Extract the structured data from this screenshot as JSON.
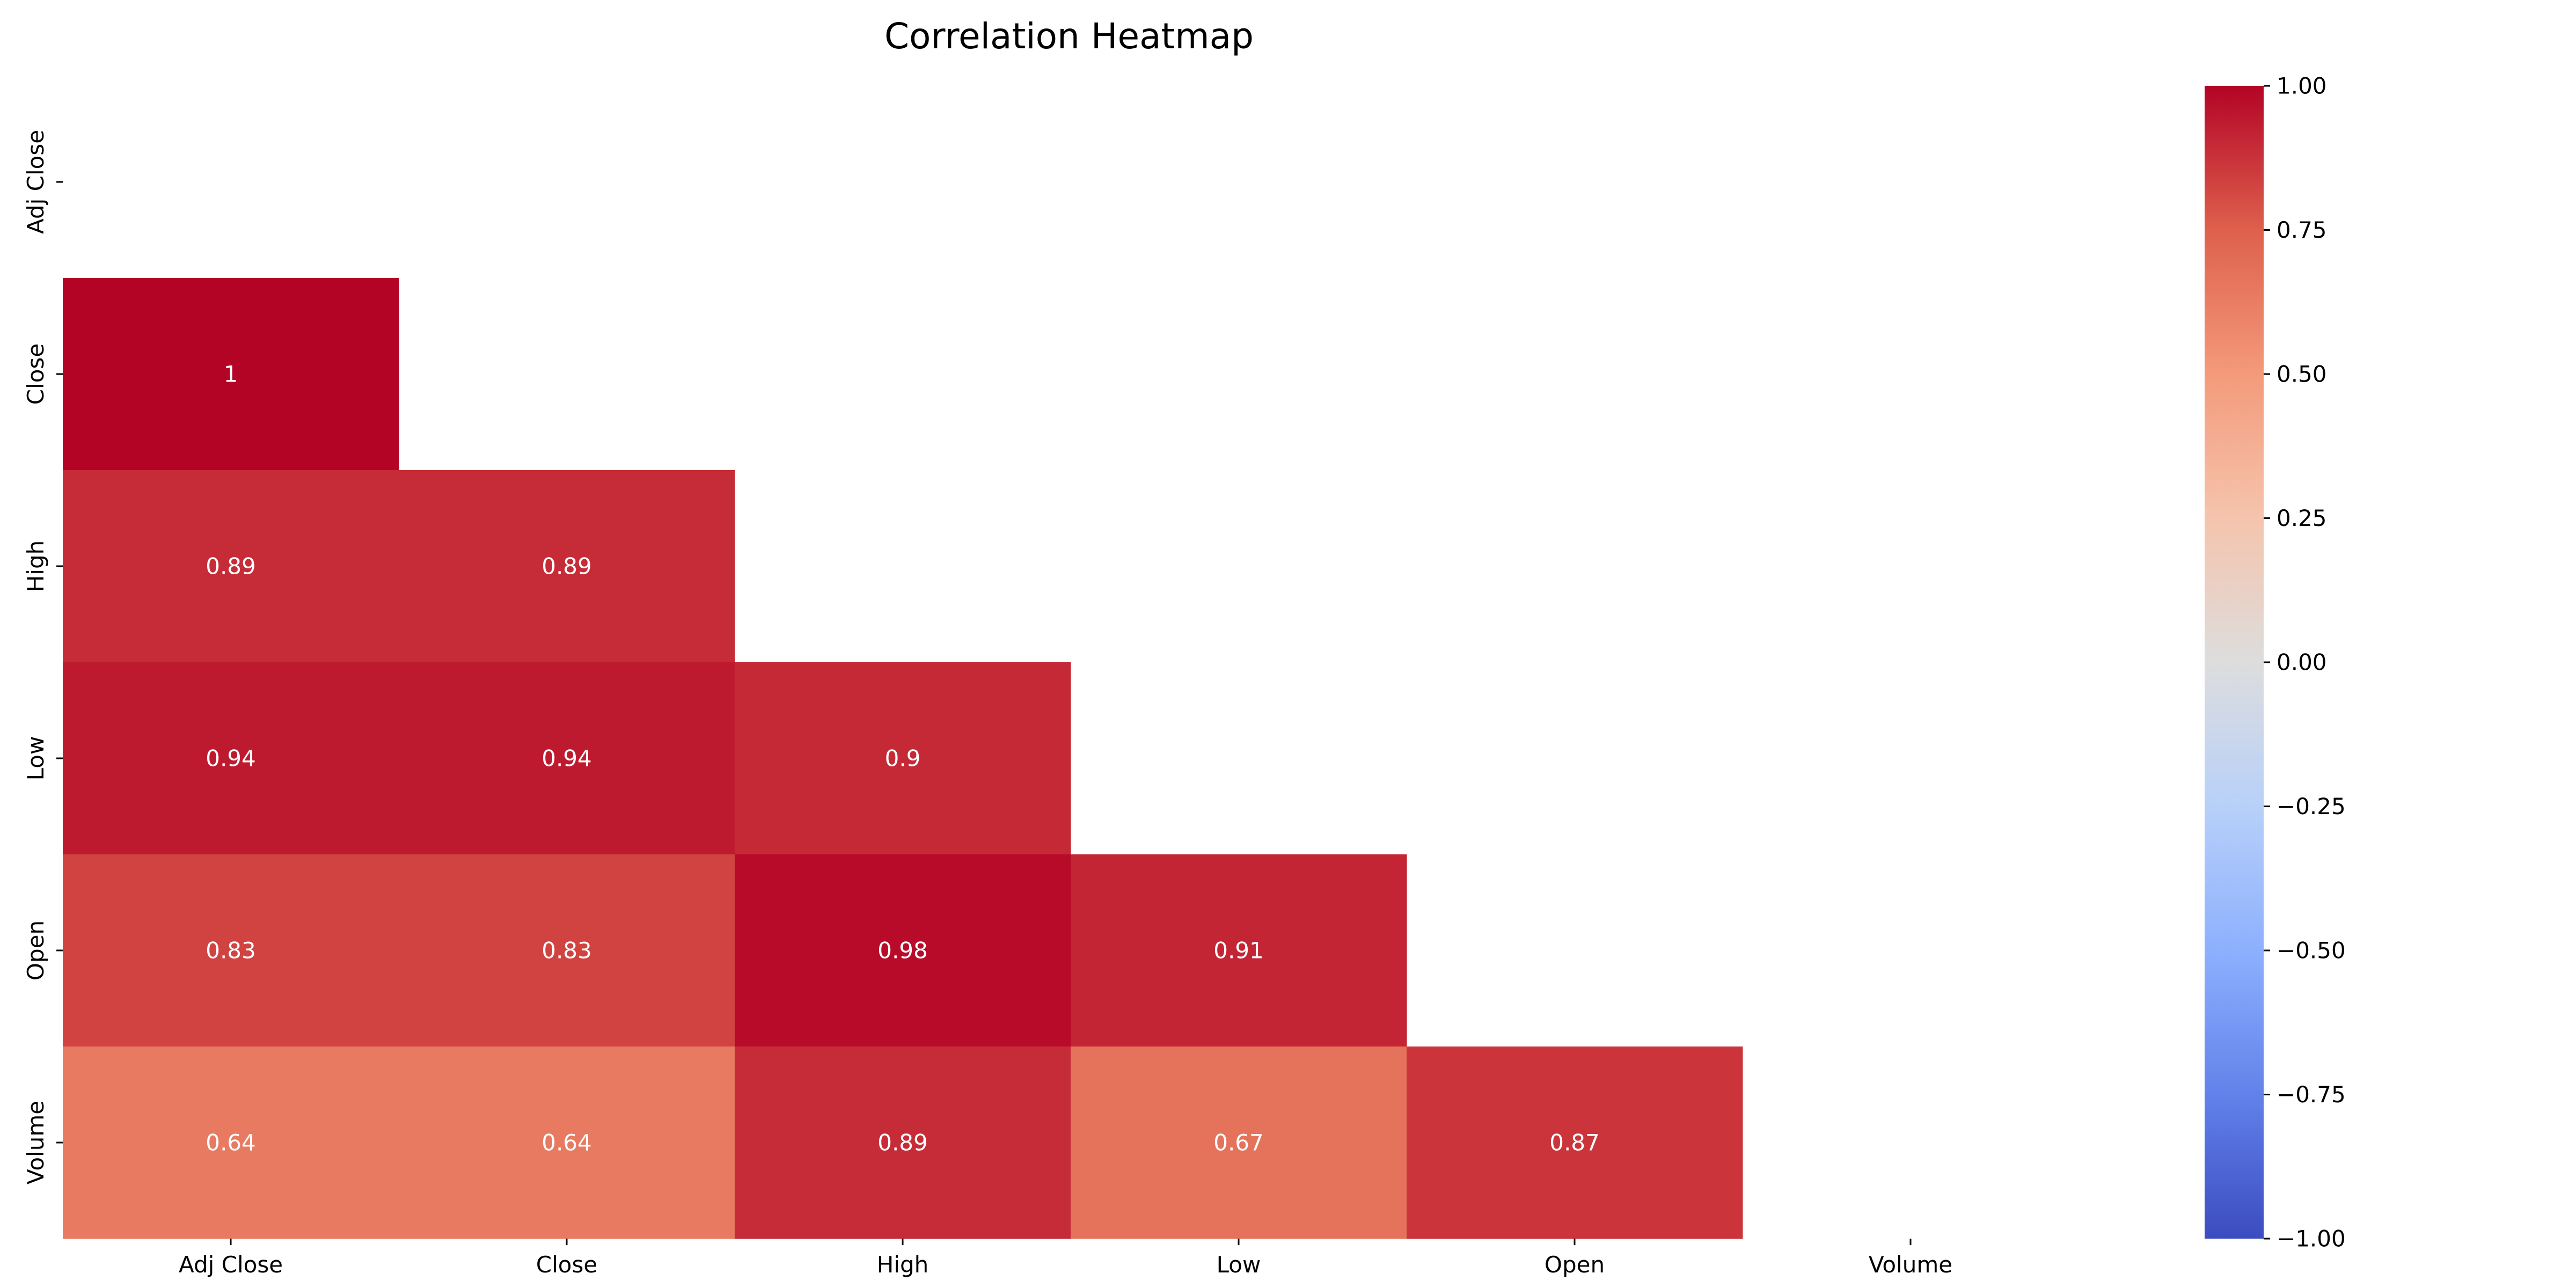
{
  "chart_data": {
    "type": "heatmap",
    "title": "Correlation Heatmap",
    "xlabel": "",
    "ylabel": "",
    "x_categories": [
      "Adj Close",
      "Close",
      "High",
      "Low",
      "Open",
      "Volume"
    ],
    "y_categories": [
      "Adj Close",
      "Close",
      "High",
      "Low",
      "Open",
      "Volume"
    ],
    "mask": "upper triangle including diagonal",
    "values": [
      [
        null,
        null,
        null,
        null,
        null,
        null
      ],
      [
        1,
        null,
        null,
        null,
        null,
        null
      ],
      [
        0.89,
        0.89,
        null,
        null,
        null,
        null
      ],
      [
        0.94,
        0.94,
        0.9,
        null,
        null,
        null
      ],
      [
        0.83,
        0.83,
        0.98,
        0.91,
        null,
        null
      ],
      [
        0.64,
        0.64,
        0.89,
        0.67,
        0.87,
        null
      ]
    ],
    "cell_labels": [
      [
        null,
        null,
        null,
        null,
        null,
        null
      ],
      [
        "1",
        null,
        null,
        null,
        null,
        null
      ],
      [
        "0.89",
        "0.89",
        null,
        null,
        null,
        null
      ],
      [
        "0.94",
        "0.94",
        "0.9",
        null,
        null,
        null
      ],
      [
        "0.83",
        "0.83",
        "0.98",
        "0.91",
        null,
        null
      ],
      [
        "0.64",
        "0.64",
        "0.89",
        "0.67",
        "0.87",
        null
      ]
    ],
    "colorbar": {
      "colormap": "coolwarm",
      "vmin": -1,
      "vmax": 1,
      "ticks": [
        1,
        0.75,
        0.5,
        0.25,
        0,
        -0.25,
        -0.5,
        -0.75,
        -1
      ],
      "tick_labels": [
        "1.00",
        "0.75",
        "0.50",
        "0.25",
        "0.00",
        "−0.25",
        "−0.50",
        "−0.75",
        "−1.00"
      ]
    },
    "grid": false,
    "legend": "colorbar at right"
  }
}
